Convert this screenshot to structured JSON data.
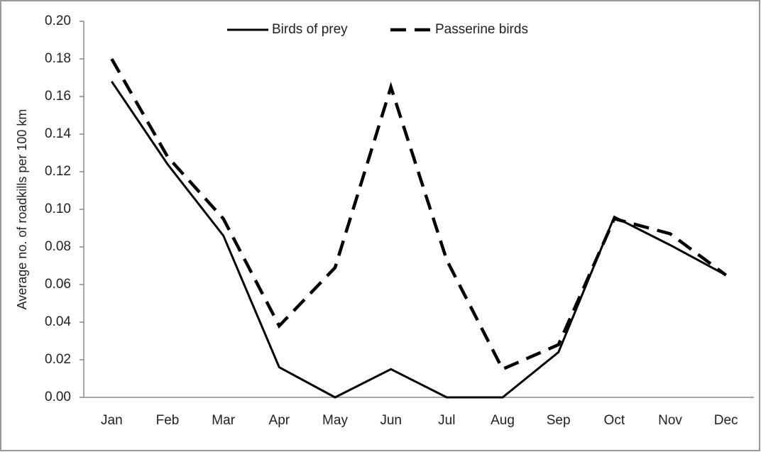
{
  "chart_data": {
    "type": "line",
    "y_label": "Average no. of roadkills per 100 km",
    "categories": [
      "Jan",
      "Feb",
      "Mar",
      "Apr",
      "May",
      "Jun",
      "Jul",
      "Aug",
      "Sep",
      "Oct",
      "Nov",
      "Dec"
    ],
    "series": [
      {
        "name": "Birds of prey",
        "color": "#000000",
        "line_style": "solid",
        "values": [
          0.168,
          0.124,
          0.086,
          0.016,
          0.0,
          0.015,
          0.0,
          0.0,
          0.024,
          0.096,
          0.081,
          0.065
        ]
      },
      {
        "name": "Passerine birds",
        "color": "#000000",
        "line_style": "dashed",
        "values": [
          0.18,
          0.128,
          0.095,
          0.038,
          0.069,
          0.165,
          0.073,
          0.015,
          0.028,
          0.095,
          0.087,
          0.065
        ]
      }
    ],
    "ylim": [
      0,
      0.2
    ],
    "yticks": [
      {
        "value": 0,
        "label": "0.00"
      },
      0.02,
      0.04,
      0.06,
      0.08,
      {
        "value": 0.1,
        "label": "0.10"
      },
      0.12,
      0.14,
      0.16,
      0.18,
      {
        "value": 0.2,
        "label": "0.20"
      }
    ],
    "grid": false,
    "legend": "top"
  }
}
